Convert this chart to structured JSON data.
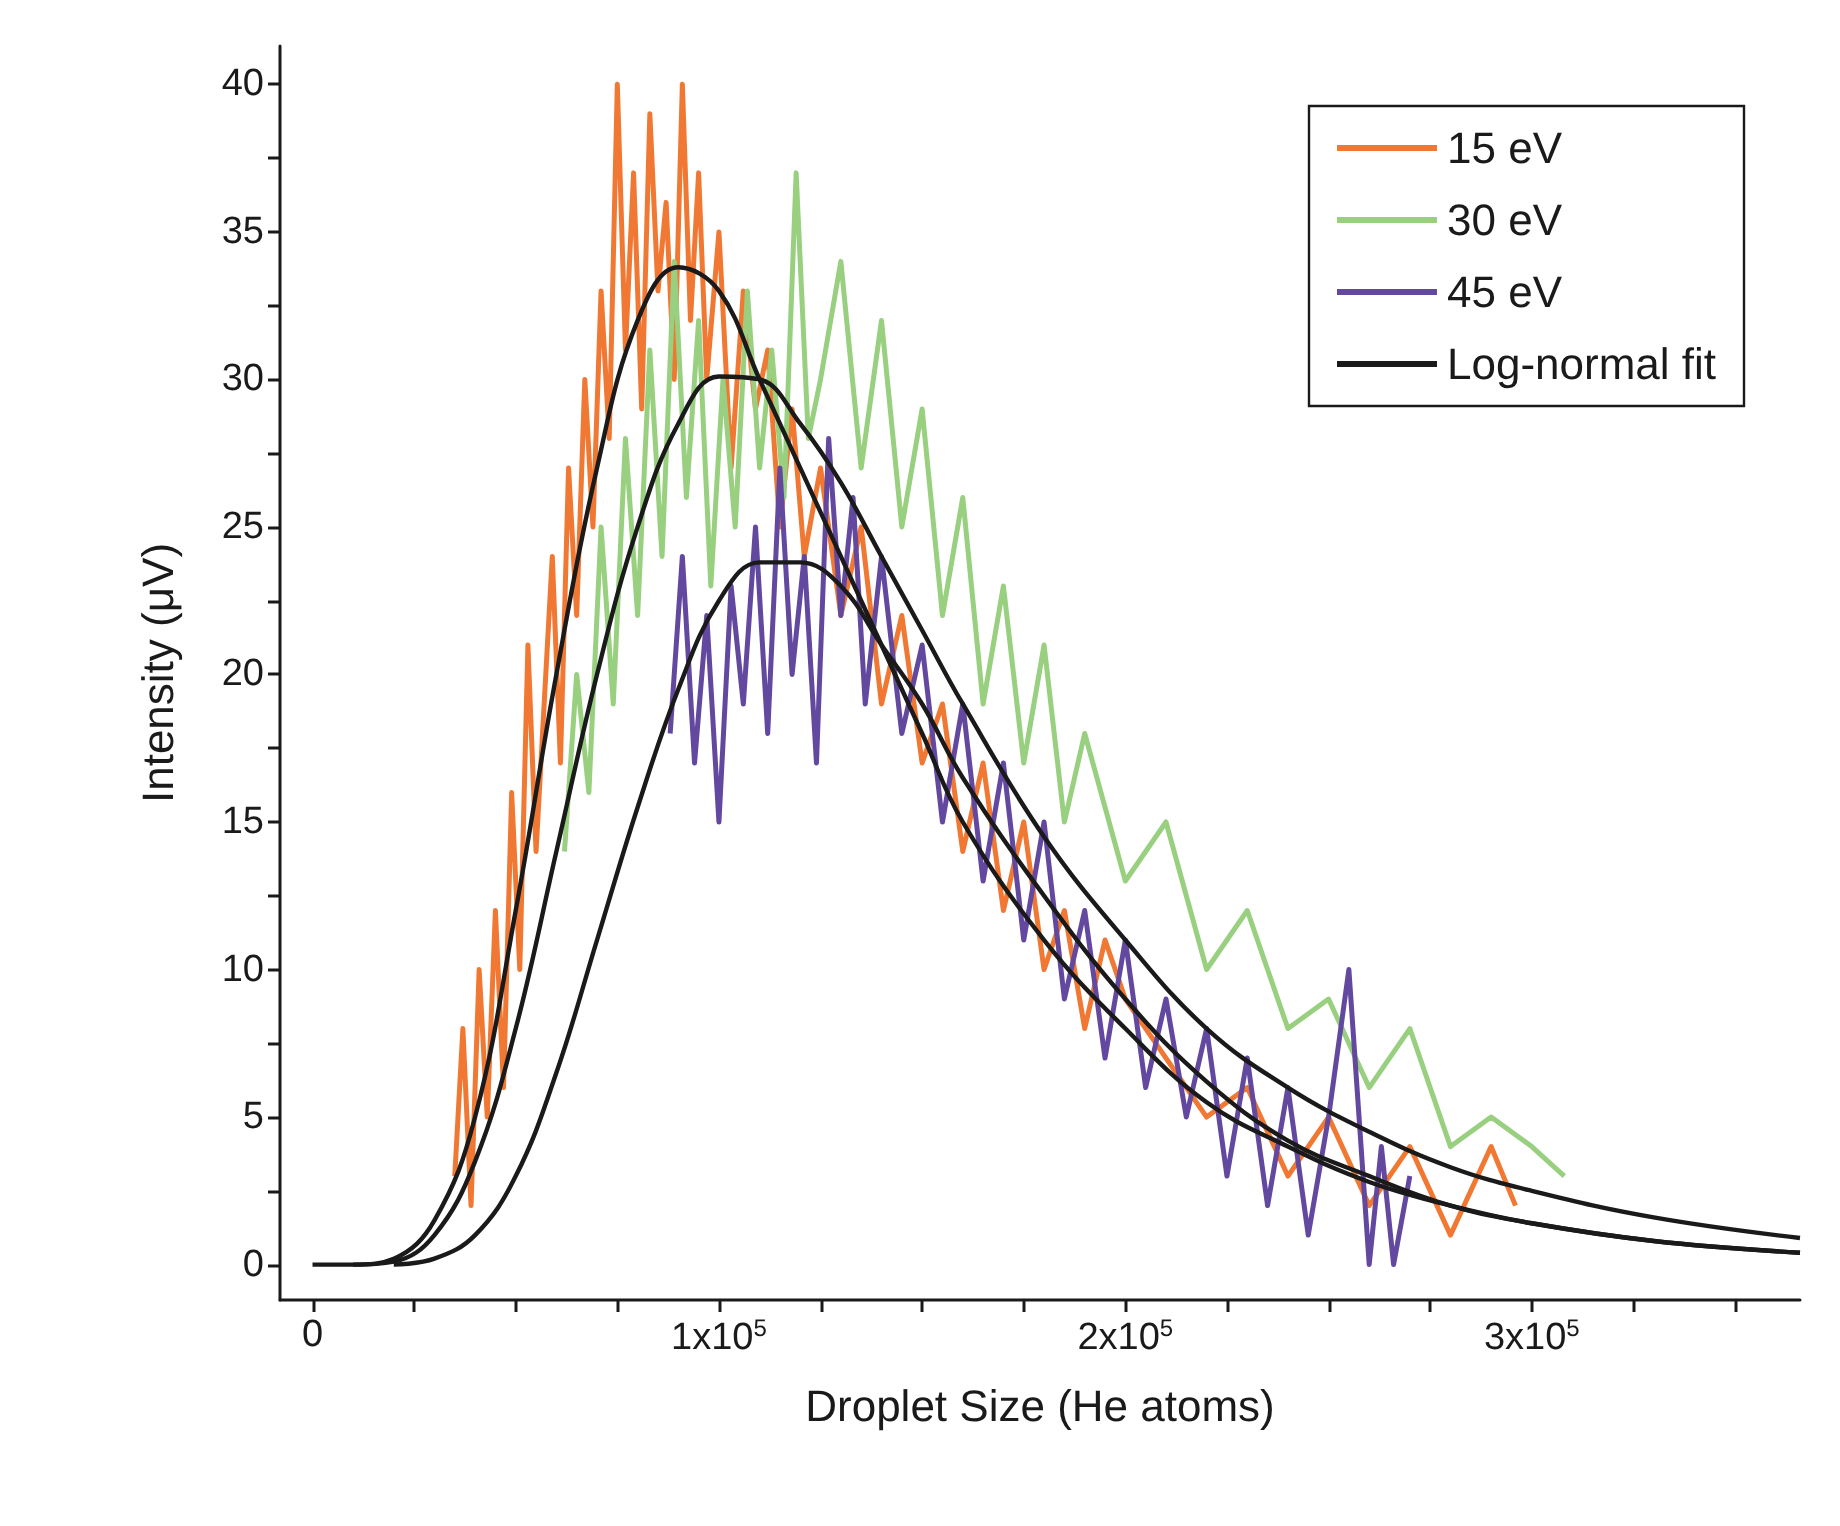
{
  "chart_data": {
    "type": "line",
    "xlabel": "Droplet Size (He atoms)",
    "ylabel": "Intensity (μV)",
    "xlim": [
      -8000,
      366000
    ],
    "ylim": [
      -1.2,
      41.3
    ],
    "xticks": [
      0,
      {
        "value": 25000,
        "label": null
      },
      {
        "value": 50000,
        "label": null
      },
      {
        "value": 75000,
        "label": null
      },
      {
        "value": 100000,
        "label": "1x10$^{5}$"
      },
      {
        "value": 125000,
        "label": null
      },
      {
        "value": 150000,
        "label": null
      },
      {
        "value": 175000,
        "label": null
      },
      {
        "value": 200000,
        "label": "2x10$^{5}$"
      },
      {
        "value": 225000,
        "label": null
      },
      {
        "value": 250000,
        "label": null
      },
      {
        "value": 275000,
        "label": null
      },
      {
        "value": 300000,
        "label": "3x10$^{5}$"
      },
      {
        "value": 325000,
        "label": null
      },
      {
        "value": 350000,
        "label": null
      }
    ],
    "yticks": [
      0,
      {
        "value": 2.5,
        "label": null
      },
      5,
      {
        "value": 7.5,
        "label": null
      },
      10,
      {
        "value": 12.5,
        "label": null
      },
      15,
      {
        "value": 17.5,
        "label": null
      },
      20,
      {
        "value": 22.5,
        "label": null
      },
      25,
      {
        "value": 27.5,
        "label": null
      },
      30,
      {
        "value": 32.5,
        "label": null
      },
      35,
      {
        "value": 37.5,
        "label": null
      },
      40
    ],
    "grid": false,
    "legend": "top right",
    "marker": "none",
    "series": [
      {
        "name": "15 eV",
        "color": "#f07832",
        "x": [
          35000,
          37000,
          39000,
          41000,
          43000,
          45000,
          47000,
          49000,
          51000,
          53000,
          55000,
          57000,
          59000,
          61000,
          63000,
          65000,
          67000,
          69000,
          71000,
          73000,
          75000,
          77000,
          79000,
          81000,
          83000,
          85000,
          87000,
          89000,
          91000,
          93000,
          95000,
          97000,
          100000,
          103000,
          106000,
          109000,
          112000,
          115000,
          118000,
          121000,
          125000,
          130000,
          135000,
          140000,
          145000,
          150000,
          155000,
          160000,
          165000,
          170000,
          175000,
          180000,
          185000,
          190000,
          195000,
          200000,
          210000,
          220000,
          230000,
          240000,
          250000,
          260000,
          270000,
          280000,
          290000,
          296000
        ],
        "values": [
          3,
          8,
          2,
          10,
          5,
          12,
          6,
          16,
          10,
          21,
          14,
          19,
          24,
          17,
          27,
          22,
          30,
          25,
          33,
          28,
          40,
          31,
          37,
          29,
          39,
          33,
          36,
          30,
          40,
          32,
          37,
          30,
          35,
          27,
          33,
          29,
          31,
          25,
          29,
          24,
          27,
          22,
          25,
          19,
          22,
          17,
          19,
          14,
          17,
          12,
          15,
          10,
          12,
          8,
          11,
          9,
          7,
          5,
          6,
          3,
          5,
          2,
          4,
          1,
          4,
          2
        ]
      },
      {
        "name": "30 eV",
        "color": "#98d080",
        "x": [
          62000,
          65000,
          68000,
          71000,
          74000,
          77000,
          80000,
          83000,
          86000,
          89000,
          92000,
          95000,
          98000,
          101000,
          104000,
          107000,
          110000,
          113000,
          116000,
          119000,
          122000,
          125000,
          130000,
          135000,
          140000,
          145000,
          150000,
          155000,
          160000,
          165000,
          170000,
          175000,
          180000,
          185000,
          190000,
          200000,
          210000,
          220000,
          230000,
          240000,
          250000,
          260000,
          270000,
          280000,
          290000,
          300000,
          308000
        ],
        "values": [
          14,
          20,
          16,
          25,
          19,
          28,
          22,
          31,
          24,
          34,
          26,
          32,
          23,
          30,
          25,
          33,
          27,
          31,
          26,
          37,
          28,
          30,
          34,
          27,
          32,
          25,
          29,
          22,
          26,
          19,
          23,
          17,
          21,
          15,
          18,
          13,
          15,
          10,
          12,
          8,
          9,
          6,
          8,
          4,
          5,
          4,
          3
        ]
      },
      {
        "name": "45 eV",
        "color": "#6348a0",
        "x": [
          88000,
          91000,
          94000,
          97000,
          100000,
          103000,
          106000,
          109000,
          112000,
          115000,
          118000,
          121000,
          124000,
          127000,
          130000,
          133000,
          136000,
          140000,
          145000,
          150000,
          155000,
          160000,
          165000,
          170000,
          175000,
          180000,
          185000,
          190000,
          195000,
          200000,
          205000,
          210000,
          215000,
          220000,
          225000,
          230000,
          235000,
          240000,
          245000,
          250000,
          255000,
          260000,
          263000,
          266000,
          270000
        ],
        "values": [
          18,
          24,
          17,
          22,
          15,
          23,
          19,
          25,
          18,
          27,
          20,
          24,
          17,
          28,
          22,
          26,
          19,
          24,
          18,
          21,
          15,
          19,
          13,
          17,
          11,
          15,
          9,
          12,
          7,
          11,
          6,
          9,
          5,
          8,
          3,
          7,
          2,
          6,
          1,
          5,
          10,
          0,
          4,
          0,
          3
        ]
      },
      {
        "name": "Log-normal fit",
        "color": "#1a1a1a",
        "x": [
          0,
          10000,
          20000,
          30000,
          40000,
          50000,
          60000,
          70000,
          80000,
          90000,
          100000,
          110000,
          120000,
          130000,
          140000,
          150000,
          160000,
          180000,
          200000,
          220000,
          240000,
          260000,
          280000,
          300000,
          330000,
          366000
        ],
        "values": [
          0,
          0,
          0.2,
          1.5,
          5,
          12,
          20,
          27,
          32,
          33.8,
          33,
          30,
          27,
          24,
          21,
          18,
          15,
          11,
          8,
          5.5,
          4,
          2.8,
          2,
          1.4,
          0.8,
          0.4
        ]
      },
      {
        "color": "#1a1a1a",
        "x": [
          10000,
          20000,
          30000,
          40000,
          50000,
          60000,
          70000,
          80000,
          90000,
          100000,
          110000,
          120000,
          130000,
          140000,
          150000,
          160000,
          180000,
          200000,
          220000,
          240000,
          260000,
          280000,
          300000,
          330000,
          366000
        ],
        "values": [
          0,
          0.1,
          1,
          3.5,
          8,
          14,
          20,
          25,
          28.5,
          30.1,
          30,
          28.5,
          26.5,
          24,
          21.5,
          19,
          14.5,
          11,
          8,
          6,
          4.5,
          3.3,
          2.5,
          1.6,
          0.9
        ]
      },
      {
        "color": "#1a1a1a",
        "x": [
          20000,
          30000,
          40000,
          50000,
          60000,
          70000,
          80000,
          90000,
          100000,
          110000,
          120000,
          130000,
          140000,
          150000,
          160000,
          180000,
          200000,
          220000,
          240000,
          260000,
          280000,
          300000,
          330000,
          366000
        ],
        "values": [
          0,
          0.2,
          1,
          3,
          6.5,
          11,
          15.5,
          19.5,
          22.5,
          23.8,
          23.8,
          23,
          21,
          19,
          16.5,
          12.5,
          9,
          6.2,
          4.2,
          3,
          2,
          1.4,
          0.8,
          0.4
        ]
      }
    ]
  }
}
